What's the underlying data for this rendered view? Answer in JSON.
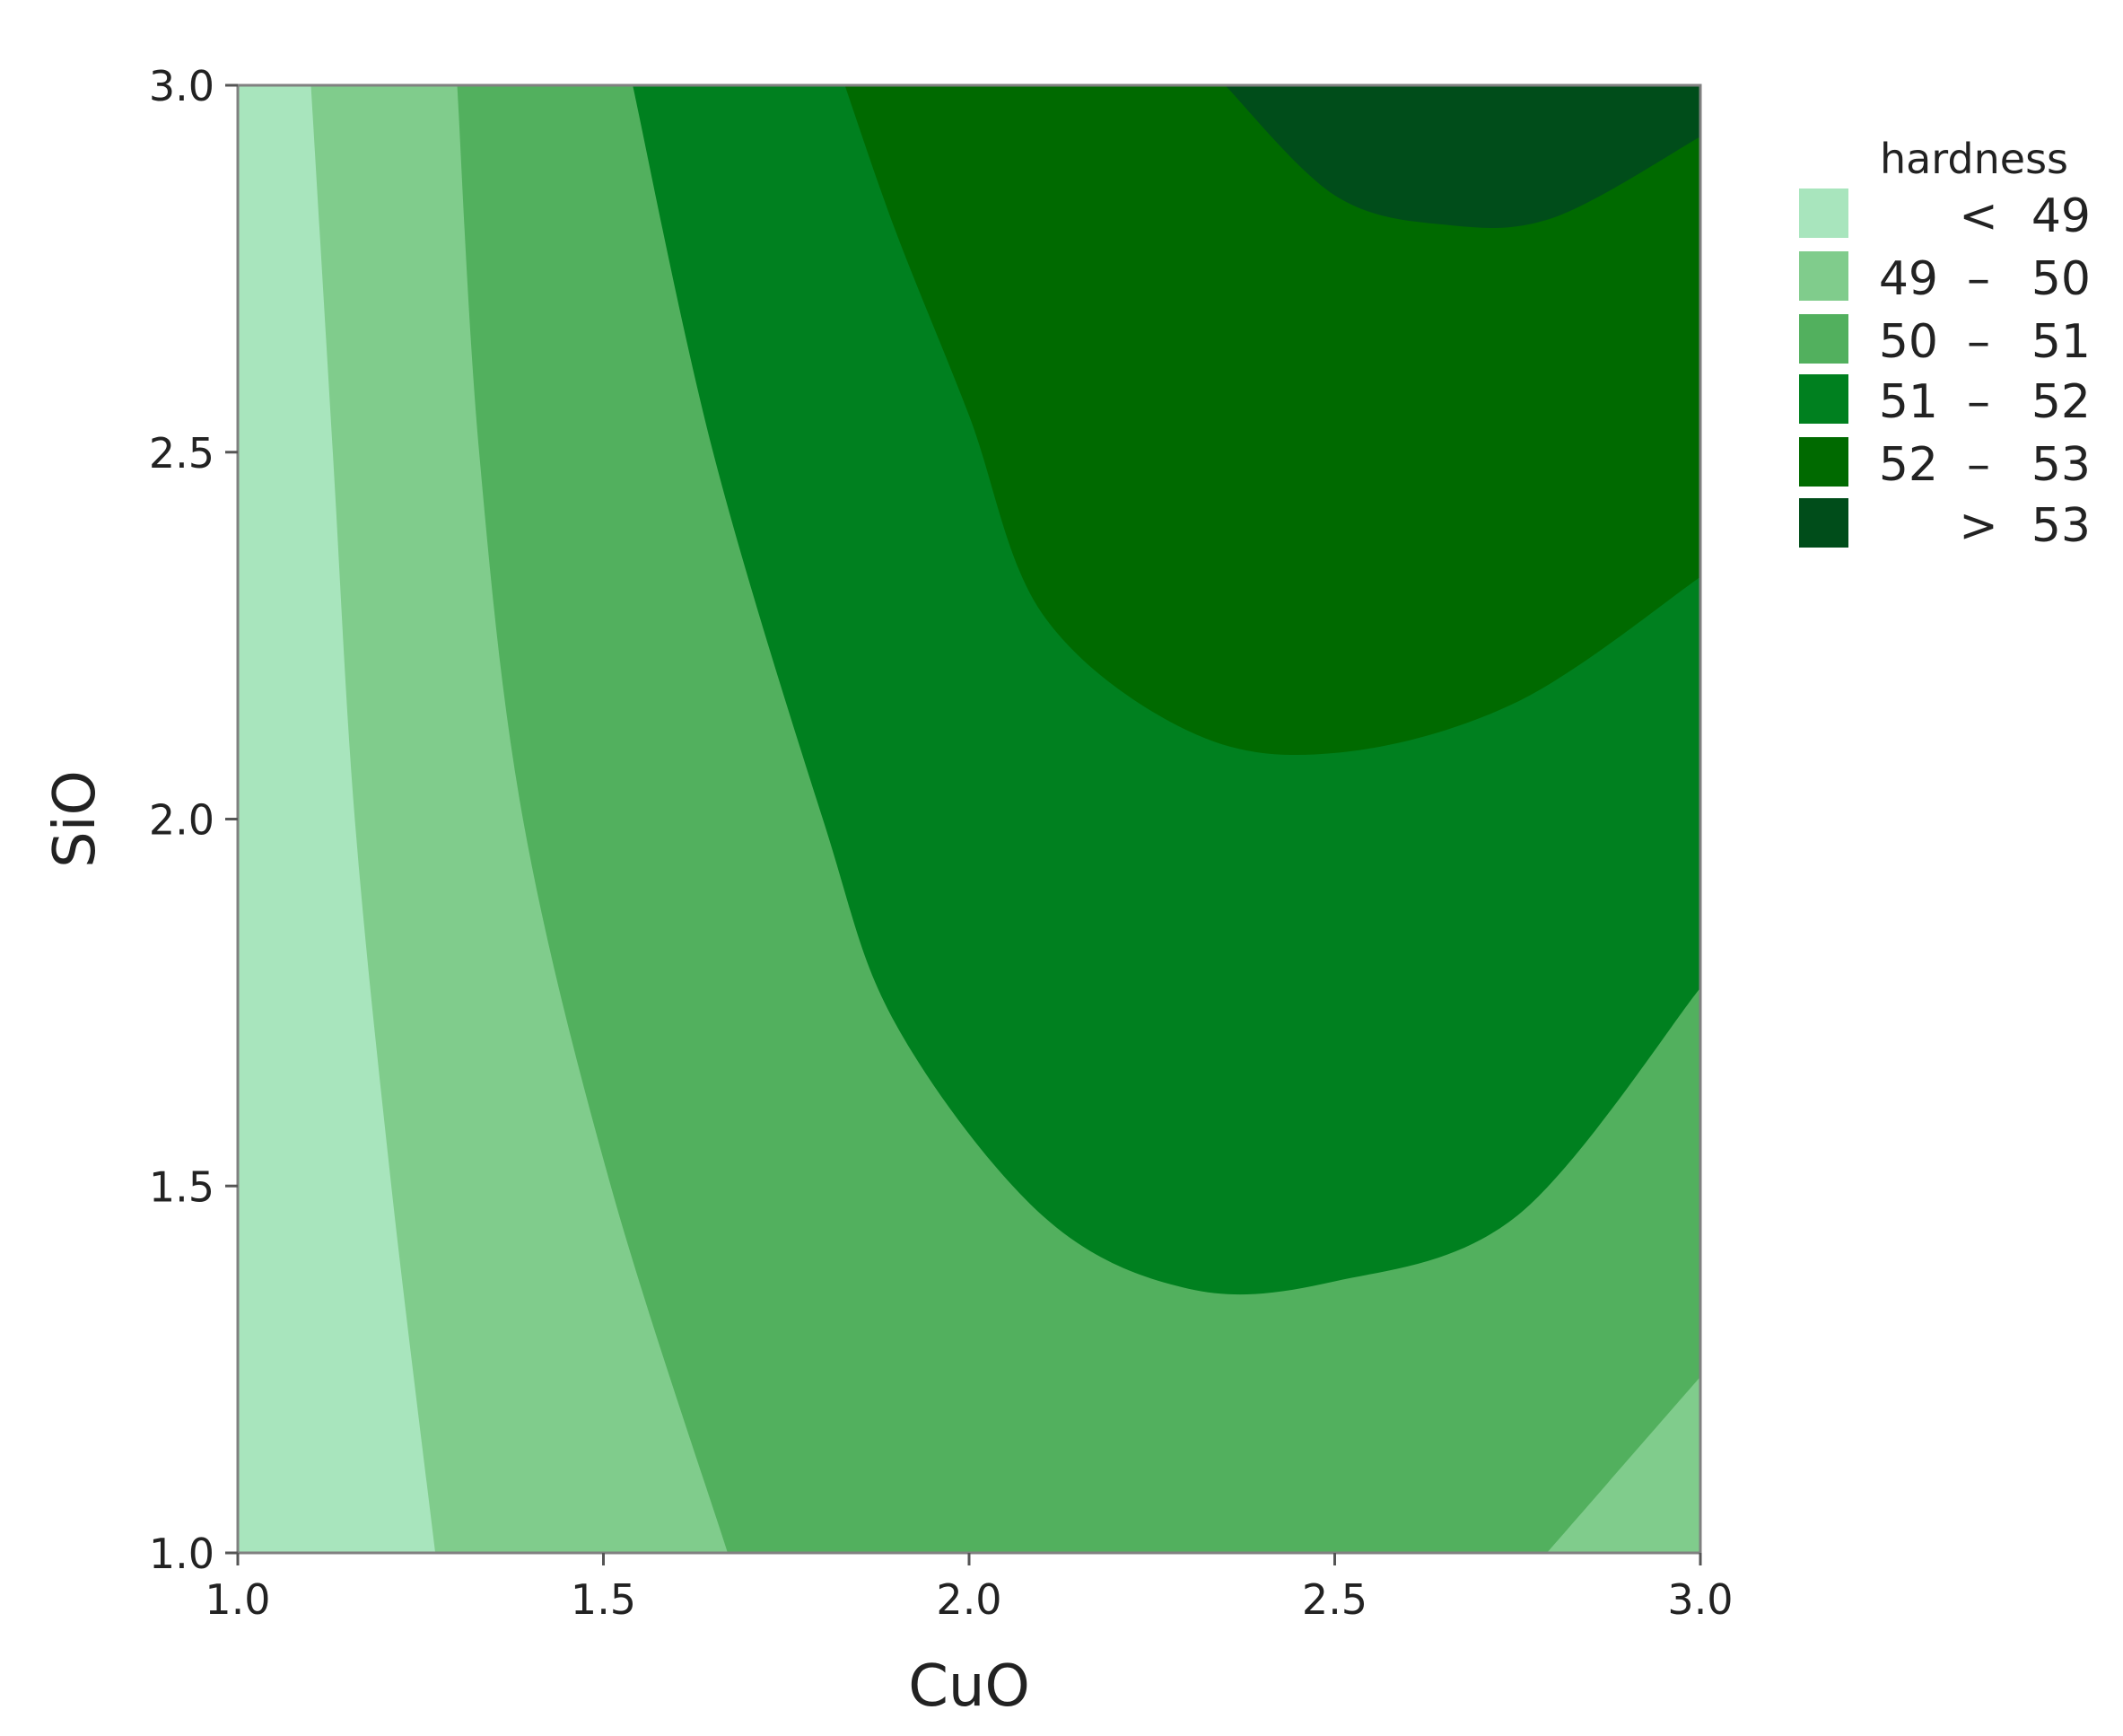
{
  "chart_data": {
    "type": "contour",
    "xlabel": "CuO",
    "ylabel": "SiO",
    "xlim": [
      1.0,
      3.0
    ],
    "ylim": [
      1.0,
      3.0
    ],
    "x_ticks": [
      "1.0",
      "1.5",
      "2.0",
      "2.5",
      "3.0"
    ],
    "y_ticks": [
      "1.0",
      "1.5",
      "2.0",
      "2.5",
      "3.0"
    ],
    "grid": false,
    "legend": {
      "title": "hardness",
      "position": "right",
      "items": [
        {
          "low": "",
          "sep": "<",
          "high": "49",
          "color": "#a8e5bd"
        },
        {
          "low": "49",
          "sep": "–",
          "high": "50",
          "color": "#80cc8c"
        },
        {
          "low": "50",
          "sep": "–",
          "high": "51",
          "color": "#52b05e"
        },
        {
          "low": "51",
          "sep": "–",
          "high": "52",
          "color": "#00801f"
        },
        {
          "low": "52",
          "sep": "–",
          "high": "53",
          "color": "#006a00"
        },
        {
          "low": "",
          "sep": ">",
          "high": "53",
          "color": "#004d1a"
        }
      ]
    },
    "contour_levels": [
      49,
      50,
      51,
      52,
      53
    ],
    "boundaries": [
      {
        "level": 49,
        "points": [
          [
            1.27,
            1.0
          ],
          [
            1.21,
            1.5
          ],
          [
            1.16,
            2.0
          ],
          [
            1.13,
            2.5
          ],
          [
            1.1,
            3.0
          ]
        ]
      },
      {
        "level": 50,
        "points": [
          [
            1.67,
            1.0
          ],
          [
            1.51,
            1.5
          ],
          [
            1.39,
            2.0
          ],
          [
            1.33,
            2.5
          ],
          [
            1.3,
            3.0
          ]
        ]
      },
      {
        "level": 50,
        "points": [
          [
            2.79,
            1.0
          ],
          [
            3.0,
            1.24
          ]
        ]
      },
      {
        "level": 51,
        "points": [
          [
            3.0,
            1.77
          ],
          [
            2.75,
            1.46
          ],
          [
            2.5,
            1.37
          ],
          [
            2.3,
            1.36
          ],
          [
            2.1,
            1.46
          ],
          [
            1.9,
            1.72
          ],
          [
            1.8,
            2.0
          ],
          [
            1.65,
            2.5
          ],
          [
            1.54,
            3.0
          ]
        ]
      },
      {
        "level": 52,
        "points": [
          [
            3.0,
            2.33
          ],
          [
            2.75,
            2.16
          ],
          [
            2.5,
            2.09
          ],
          [
            2.3,
            2.12
          ],
          [
            2.1,
            2.28
          ],
          [
            2.0,
            2.55
          ],
          [
            1.9,
            2.8
          ],
          [
            1.83,
            3.0
          ]
        ]
      },
      {
        "level": 53,
        "points": [
          [
            3.0,
            2.93
          ],
          [
            2.8,
            2.82
          ],
          [
            2.65,
            2.81
          ],
          [
            2.5,
            2.85
          ],
          [
            2.35,
            3.0
          ]
        ]
      }
    ]
  }
}
